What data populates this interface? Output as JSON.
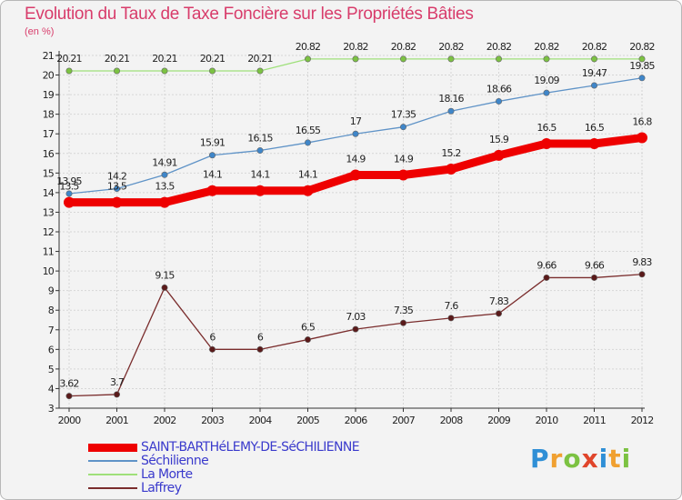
{
  "title": "Evolution du Taux de Taxe Foncière sur les Propriétés Bâties",
  "subtitle": "(en %)",
  "brand": {
    "letters": [
      "P",
      "r",
      "o",
      "x",
      "i",
      "t",
      "i"
    ],
    "colors": [
      "#2f8fd6",
      "#f0a030",
      "#7cc242",
      "#e0452b",
      "#2f8fd6",
      "#f0a030",
      "#7cc242"
    ]
  },
  "chart_data": {
    "type": "line",
    "title": "Evolution du Taux de Taxe Foncière sur les Propriétés Bâties",
    "ylabel": "(en %)",
    "xlabel": "",
    "x": [
      "2000",
      "2001",
      "2002",
      "2003",
      "2004",
      "2005",
      "2006",
      "2007",
      "2008",
      "2009",
      "2010",
      "2011",
      "2012"
    ],
    "ylim": [
      3,
      21
    ],
    "yticks": [
      "3",
      "4",
      "5",
      "6",
      "7",
      "8",
      "9",
      "10",
      "11",
      "12",
      "13",
      "14",
      "15",
      "16",
      "17",
      "18",
      "19",
      "20",
      "21"
    ],
    "legend_position": "bottom-left",
    "series": [
      {
        "name": "SAINT-BARTHéLEMY-DE-SéCHILIENNE",
        "color": "#ee0000",
        "text_color": "#3a3acc",
        "weight": "thick",
        "values": [
          13.5,
          13.5,
          13.5,
          14.1,
          14.1,
          14.1,
          14.9,
          14.9,
          15.2,
          15.9,
          16.5,
          16.5,
          16.8
        ],
        "labels": [
          "13.5",
          "13.5",
          "13.5",
          "14.1",
          "14.1",
          "14.1",
          "14.9",
          "14.9",
          "15.2",
          "15.9",
          "16.5",
          "16.5",
          "16.8"
        ]
      },
      {
        "name": "Séchilienne",
        "color": "#5f93c7",
        "marker_color": "#3f86c9",
        "text_color": "#3a3acc",
        "weight": "thin",
        "values": [
          13.95,
          14.2,
          14.91,
          15.91,
          16.15,
          16.55,
          17,
          17.35,
          18.16,
          18.66,
          19.09,
          19.47,
          19.85
        ],
        "labels": [
          "13.95",
          "14.2",
          "14.91",
          "15.91",
          "16.15",
          "16.55",
          "17",
          "17.35",
          "18.16",
          "18.66",
          "19.09",
          "19.47",
          "19.85"
        ]
      },
      {
        "name": "La Morte",
        "color": "#9fe07a",
        "marker_color": "#7cc242",
        "text_color": "#3a3acc",
        "weight": "thin",
        "values": [
          20.21,
          20.21,
          20.21,
          20.21,
          20.21,
          20.82,
          20.82,
          20.82,
          20.82,
          20.82,
          20.82,
          20.82,
          20.82
        ],
        "labels": [
          "20.21",
          "20.21",
          "20.21",
          "20.21",
          "20.21",
          "20.82",
          "20.82",
          "20.82",
          "20.82",
          "20.82",
          "20.82",
          "20.82",
          "20.82"
        ]
      },
      {
        "name": "Laffrey",
        "color": "#7a2d2d",
        "marker_color": "#5a1a1a",
        "text_color": "#3a3acc",
        "weight": "thin",
        "values": [
          3.62,
          3.7,
          9.15,
          6,
          6,
          6.5,
          7.03,
          7.35,
          7.6,
          7.83,
          9.66,
          9.66,
          9.83
        ],
        "labels": [
          "3.62",
          "3.7",
          "9.15",
          "6",
          "6",
          "6.5",
          "7.03",
          "7.35",
          "7.6",
          "7.83",
          "9.66",
          "9.66",
          "9.83"
        ]
      }
    ]
  }
}
